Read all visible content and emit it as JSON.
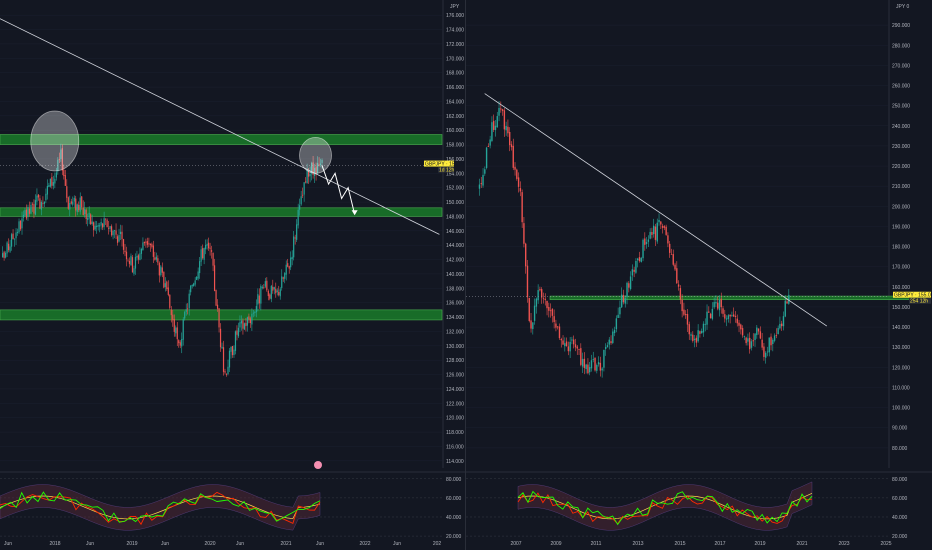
{
  "colors": {
    "background": "#131722",
    "up_candle": "#26a69a",
    "down_candle": "#ef5350",
    "zone_fill": "#1b8a2b",
    "zone_line": "#4caf50",
    "trendline": "#d1d4dc",
    "price_badge": "#ffeb3b",
    "osc_primary": "#22ff00",
    "osc_secondary": "#ff2a00",
    "osc_mid": "#ffd54f"
  },
  "chart_data": [
    {
      "type": "candlestick",
      "pane": "left",
      "currency_label": "JPY",
      "symbol_label": "GBPJPY",
      "last_price_label": "155.075",
      "countdown_label": "1d 12h",
      "ylim": [
        113,
        177
      ],
      "y_ticks": [
        "176.000",
        "174.000",
        "172.000",
        "170.000",
        "168.000",
        "166.000",
        "164.000",
        "162.000",
        "160.000",
        "158.000",
        "156.000",
        "154.000",
        "152.000",
        "150.000",
        "148.000",
        "146.000",
        "144.000",
        "142.000",
        "140.000",
        "138.000",
        "136.000",
        "134.000",
        "132.000",
        "130.000",
        "128.000",
        "126.000",
        "124.000",
        "122.000",
        "120.000",
        "118.000",
        "116.000",
        "114.000"
      ],
      "x_ticks": [
        "Jun",
        "2018",
        "Jun",
        "2019",
        "Jun",
        "2020",
        "Jun",
        "2021",
        "Jun",
        "2022",
        "Jun",
        "202"
      ],
      "close_path": [
        [
          "2017-05",
          142.0
        ],
        [
          "2017-07",
          146.0
        ],
        [
          "2017-09",
          148.5
        ],
        [
          "2017-11",
          150.5
        ],
        [
          "2018-01",
          153.5
        ],
        [
          "2018-02",
          156.5
        ],
        [
          "2018-03",
          150.0
        ],
        [
          "2018-05",
          149.5
        ],
        [
          "2018-07",
          146.5
        ],
        [
          "2018-09",
          147.0
        ],
        [
          "2018-11",
          145.0
        ],
        [
          "2019-01",
          141.0
        ],
        [
          "2019-03",
          145.0
        ],
        [
          "2019-05",
          141.0
        ],
        [
          "2019-07",
          134.0
        ],
        [
          "2019-08",
          129.5
        ],
        [
          "2019-10",
          138.5
        ],
        [
          "2019-12",
          144.0
        ],
        [
          "2020-01",
          142.5
        ],
        [
          "2020-03",
          126.0
        ],
        [
          "2020-05",
          132.0
        ],
        [
          "2020-07",
          134.0
        ],
        [
          "2020-09",
          138.0
        ],
        [
          "2020-11",
          137.0
        ],
        [
          "2021-01",
          141.5
        ],
        [
          "2021-03",
          151.0
        ],
        [
          "2021-04",
          154.5
        ],
        [
          "2021-05",
          154.0
        ],
        [
          "2021-06",
          155.1
        ]
      ],
      "horizontal_zones": [
        [
          158.0,
          159.4
        ],
        [
          148.0,
          149.2
        ],
        [
          133.6,
          135.0
        ]
      ],
      "trendline": {
        "from": [
          "2016-11",
          178.0
        ],
        "to": [
          "2022-12",
          145.5
        ]
      },
      "projection_path": [
        [
          "2021-06",
          155.1
        ],
        [
          "2021-07",
          152.5
        ],
        [
          "2021-08",
          154.0
        ],
        [
          "2021-09",
          150.5
        ],
        [
          "2021-10",
          152.0
        ],
        [
          "2021-11",
          148.3
        ]
      ],
      "highlight_circles": [
        [
          "2018-01",
          158.5
        ],
        [
          "2021-05",
          156.5
        ]
      ],
      "oscillator": {
        "ylim": [
          18,
          85
        ],
        "y_ticks": [
          "80.000",
          "60.000",
          "40.000",
          "20.000"
        ]
      }
    },
    {
      "type": "candlestick",
      "pane": "right",
      "currency_label": "JPY 0",
      "symbol_label": "GBPJPY",
      "last_price_label": "155.075",
      "countdown_label": "254 12h",
      "ylim": [
        70,
        300
      ],
      "y_ticks": [
        "290.000",
        "280.000",
        "270.000",
        "260.000",
        "250.000",
        "240.000",
        "230.000",
        "220.000",
        "210.000",
        "200.000",
        "190.000",
        "180.000",
        "170.000",
        "160.000",
        "150.000",
        "140.000",
        "130.000",
        "120.000",
        "110.000",
        "100.000",
        "90.000",
        "80.000"
      ],
      "x_ticks": [
        "2007",
        "2009",
        "2011",
        "2013",
        "2015",
        "2017",
        "2019",
        "2021",
        "2023",
        "2025"
      ],
      "close_path": [
        [
          "2006-07",
          208.0
        ],
        [
          "2007-01",
          235.0
        ],
        [
          "2007-07",
          250.0
        ],
        [
          "2008-01",
          228.0
        ],
        [
          "2008-07",
          205.0
        ],
        [
          "2008-12",
          140.0
        ],
        [
          "2009-06",
          158.0
        ],
        [
          "2010-01",
          145.0
        ],
        [
          "2010-07",
          133.0
        ],
        [
          "2011-01",
          130.0
        ],
        [
          "2011-09",
          120.0
        ],
        [
          "2012-06",
          122.0
        ],
        [
          "2013-01",
          140.0
        ],
        [
          "2013-06",
          155.0
        ],
        [
          "2014-01",
          170.0
        ],
        [
          "2014-06",
          180.0
        ],
        [
          "2015-06",
          193.0
        ],
        [
          "2016-01",
          165.0
        ],
        [
          "2016-06",
          145.0
        ],
        [
          "2016-10",
          132.0
        ],
        [
          "2017-06",
          145.0
        ],
        [
          "2018-01",
          152.0
        ],
        [
          "2018-06",
          145.0
        ],
        [
          "2019-01",
          140.0
        ],
        [
          "2019-08",
          130.0
        ],
        [
          "2020-01",
          143.0
        ],
        [
          "2020-03",
          126.0
        ],
        [
          "2020-09",
          136.0
        ],
        [
          "2021-01",
          142.0
        ],
        [
          "2021-06",
          155.1
        ]
      ],
      "horizontal_zones": [
        [
          153.6,
          155.4
        ]
      ],
      "trendline": {
        "from": [
          "2006-10",
          256.0
        ],
        "to": [
          "2023-04",
          140.5
        ]
      },
      "oscillator": {
        "ylim": [
          18,
          85
        ],
        "y_ticks": [
          "80.000",
          "60.000",
          "40.000",
          "20.000"
        ]
      }
    }
  ]
}
